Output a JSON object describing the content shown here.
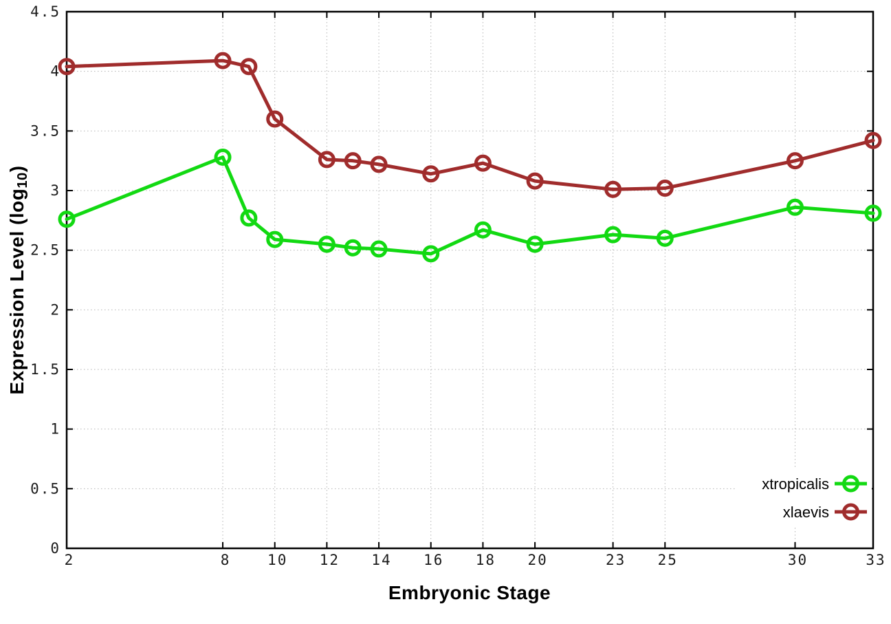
{
  "chart_data": {
    "type": "line",
    "title": "",
    "xlabel": "Embryonic Stage",
    "ylabel": "Expression Level (log10)",
    "ylabel_parts": {
      "prefix": "Expression Level (log",
      "subscript": "10",
      "suffix": ")"
    },
    "xlim": [
      2,
      33
    ],
    "ylim": [
      0,
      4.5
    ],
    "grid": "dotted",
    "legend_position": "inside-bottom-right",
    "x": [
      2,
      8,
      9,
      10,
      12,
      13,
      14,
      16,
      18,
      20,
      23,
      25,
      30,
      33
    ],
    "series": [
      {
        "name": "xtropicalis",
        "color": "#12d912",
        "marker": "open-circle",
        "values": [
          2.76,
          3.28,
          2.77,
          2.59,
          2.55,
          2.52,
          2.51,
          2.47,
          2.67,
          2.55,
          2.63,
          2.6,
          2.86,
          2.81
        ]
      },
      {
        "name": "xlaevis",
        "color": "#a02c2c",
        "marker": "open-circle",
        "values": [
          4.04,
          4.09,
          4.04,
          3.6,
          3.26,
          3.25,
          3.22,
          3.14,
          3.23,
          3.08,
          3.01,
          3.02,
          3.25,
          3.42
        ]
      }
    ],
    "x_ticks": [
      {
        "v": 2,
        "label": "2"
      },
      {
        "v": 8,
        "label": "8"
      },
      {
        "v": 10,
        "label": "10"
      },
      {
        "v": 12,
        "label": "12"
      },
      {
        "v": 14,
        "label": "14"
      },
      {
        "v": 16,
        "label": "16"
      },
      {
        "v": 18,
        "label": "18"
      },
      {
        "v": 20,
        "label": "20"
      },
      {
        "v": 23,
        "label": "23"
      },
      {
        "v": 25,
        "label": "25"
      },
      {
        "v": 30,
        "label": "30"
      },
      {
        "v": 33,
        "label": "33"
      }
    ],
    "y_ticks": [
      {
        "v": 0,
        "label": "0"
      },
      {
        "v": 0.5,
        "label": "0.5"
      },
      {
        "v": 1,
        "label": "1"
      },
      {
        "v": 1.5,
        "label": "1.5"
      },
      {
        "v": 2,
        "label": "2"
      },
      {
        "v": 2.5,
        "label": "2.5"
      },
      {
        "v": 3,
        "label": "3"
      },
      {
        "v": 3.5,
        "label": "3.5"
      },
      {
        "v": 4,
        "label": "4"
      },
      {
        "v": 4.5,
        "label": "4.5"
      }
    ],
    "style": {
      "background": "#ffffff",
      "border_color": "#000000",
      "grid_color": "#b3b3b3",
      "tick_label_color": "#1a1a1a"
    }
  }
}
